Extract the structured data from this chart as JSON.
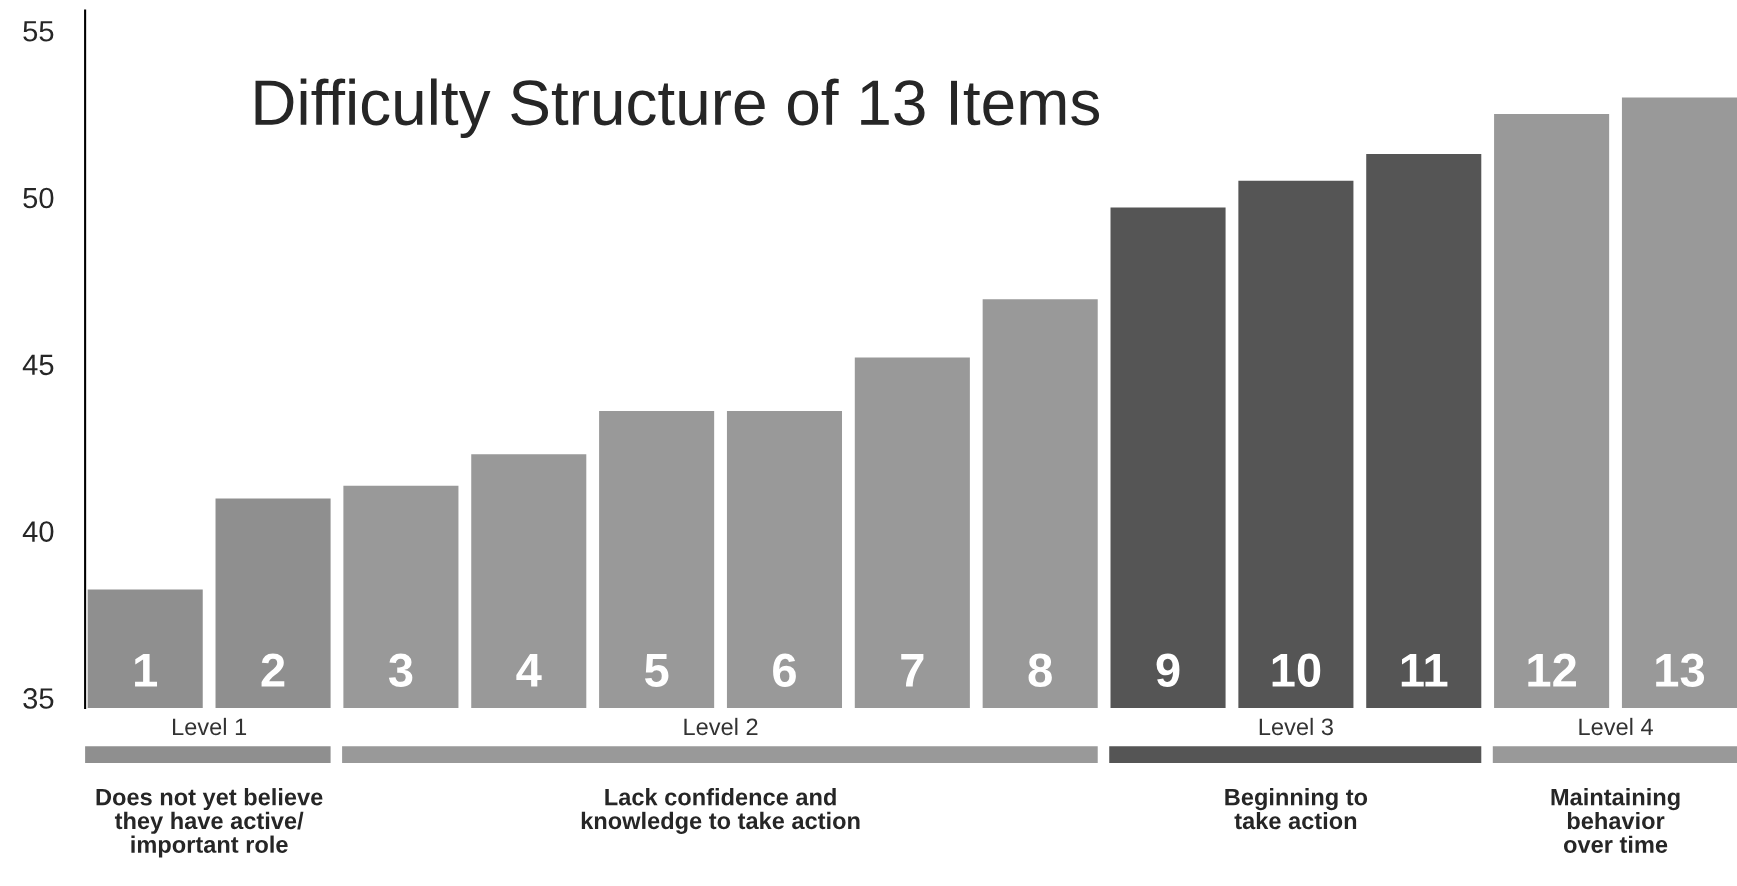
{
  "chart_data": {
    "type": "bar",
    "title": "Difficulty Structure of 13 Items",
    "categories": [
      "1",
      "2",
      "3",
      "4",
      "5",
      "6",
      "7",
      "8",
      "9",
      "10",
      "11",
      "12",
      "13"
    ],
    "values": [
      38.25,
      40.98,
      41.36,
      42.3,
      43.6,
      43.6,
      45.2,
      46.95,
      49.7,
      50.5,
      51.3,
      52.5,
      53.0
    ],
    "colors": [
      "#8f8f8f",
      "#8f8f8f",
      "#999999",
      "#999999",
      "#999999",
      "#999999",
      "#999999",
      "#999999",
      "#555555",
      "#555555",
      "#555555",
      "#999999",
      "#999999"
    ],
    "ylim": [
      34.7,
      55.6
    ],
    "yticks": [
      35,
      40,
      45,
      50,
      55
    ],
    "grid": false,
    "legend": false,
    "annotations": [
      "Level 1",
      "Level 2",
      "Level 3",
      "Level 4",
      "Does not yet believe\nthey have active/\nimportant role",
      "Lack confidence and\nknowledge to take action",
      "Beginning to\ntake action",
      "Maintaining\nbehavior\nover time"
    ]
  }
}
